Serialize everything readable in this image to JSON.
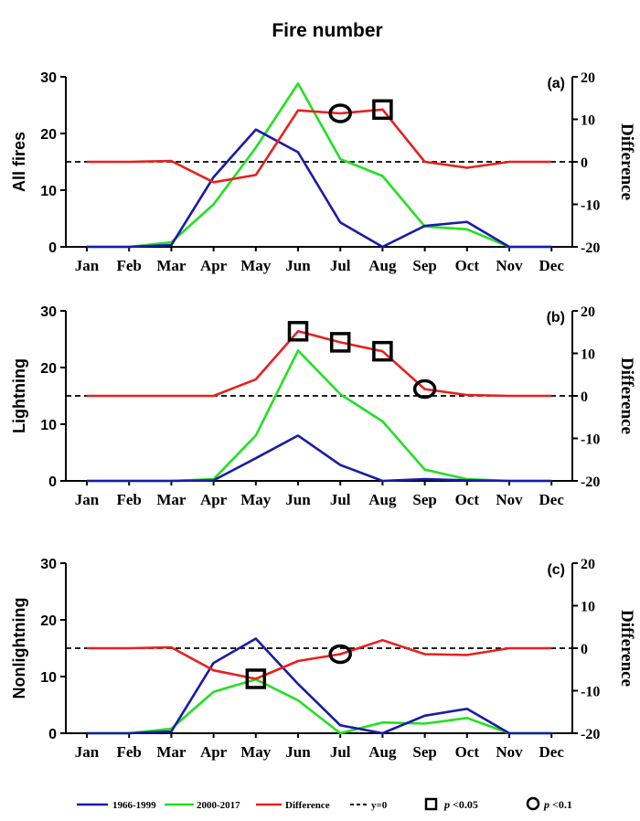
{
  "figure_title": "Fire number",
  "legend": {
    "series_a": "1966-1999",
    "series_b": "2000-2017",
    "series_diff": "Difference",
    "zero_line": "y=0",
    "p05_prefix": "p",
    "p05_rest": " <0.05",
    "p1_prefix": "p",
    "p1_rest": " <0.1"
  },
  "colors": {
    "s1966": "#1a1aa8",
    "s2000": "#22e022",
    "diff": "#e8201e",
    "zero": "#000000"
  },
  "chart_data": [
    {
      "type": "line",
      "panel_label": "(a)",
      "ylabel": "All fires",
      "y2label": "Difference",
      "categories": [
        "Jan",
        "Feb",
        "Mar",
        "Apr",
        "May",
        "Jun",
        "Jul",
        "Aug",
        "Sep",
        "Oct",
        "Nov",
        "Dec"
      ],
      "ylim": [
        0,
        30
      ],
      "yticks": [
        0,
        10,
        20,
        30
      ],
      "y2lim": [
        -20,
        20
      ],
      "y2ticks": [
        -20,
        -10,
        0,
        10,
        20
      ],
      "series": [
        {
          "name": "1966-1999",
          "axis": "left",
          "values": [
            0,
            0,
            0.3,
            12.3,
            20.7,
            16.7,
            4.3,
            0,
            3.7,
            4.4,
            0,
            0
          ]
        },
        {
          "name": "2000-2017",
          "axis": "left",
          "values": [
            0,
            0,
            0.8,
            7.5,
            17.5,
            28.8,
            15.5,
            12.5,
            3.6,
            3.1,
            0,
            0
          ]
        },
        {
          "name": "Difference",
          "axis": "right",
          "values": [
            0,
            0,
            0.2,
            -4.8,
            -3.1,
            12.1,
            11.4,
            12.3,
            0,
            -1.4,
            0,
            0
          ]
        }
      ],
      "markers": [
        {
          "category": "Jul",
          "value": 11.4,
          "marker": "circle"
        },
        {
          "category": "Aug",
          "value": 12.3,
          "marker": "square"
        }
      ]
    },
    {
      "type": "line",
      "panel_label": "(b)",
      "ylabel": "Lightning",
      "y2label": "Difference",
      "categories": [
        "Jan",
        "Feb",
        "Mar",
        "Apr",
        "May",
        "Jun",
        "Jul",
        "Aug",
        "Sep",
        "Oct",
        "Nov",
        "Dec"
      ],
      "ylim": [
        0,
        30
      ],
      "yticks": [
        0,
        10,
        20,
        30
      ],
      "y2lim": [
        -20,
        20
      ],
      "y2ticks": [
        -20,
        -10,
        0,
        10,
        20
      ],
      "series": [
        {
          "name": "1966-1999",
          "axis": "left",
          "values": [
            0,
            0,
            0,
            0.1,
            4.0,
            8.0,
            2.8,
            0,
            0.3,
            0.1,
            0,
            0
          ]
        },
        {
          "name": "2000-2017",
          "axis": "left",
          "values": [
            0,
            0,
            0,
            0.3,
            8.0,
            23.0,
            15.3,
            10.5,
            2.0,
            0.3,
            0,
            0
          ]
        },
        {
          "name": "Difference",
          "axis": "right",
          "values": [
            0,
            0,
            0,
            0,
            3.9,
            15.2,
            12.6,
            10.5,
            1.6,
            0.2,
            0,
            0
          ]
        }
      ],
      "markers": [
        {
          "category": "Jun",
          "value": 15.2,
          "marker": "square"
        },
        {
          "category": "Jul",
          "value": 12.6,
          "marker": "square"
        },
        {
          "category": "Aug",
          "value": 10.5,
          "marker": "square"
        },
        {
          "category": "Sep",
          "value": 1.6,
          "marker": "circle"
        }
      ]
    },
    {
      "type": "line",
      "panel_label": "(c)",
      "ylabel": "Nonlightning",
      "y2label": "Difference",
      "categories": [
        "Jan",
        "Feb",
        "Mar",
        "Apr",
        "May",
        "Jun",
        "Jul",
        "Aug",
        "Sep",
        "Oct",
        "Nov",
        "Dec"
      ],
      "ylim": [
        0,
        30
      ],
      "yticks": [
        0,
        10,
        20,
        30
      ],
      "y2lim": [
        -20,
        20
      ],
      "y2ticks": [
        -20,
        -10,
        0,
        10,
        20
      ],
      "series": [
        {
          "name": "1966-1999",
          "axis": "left",
          "values": [
            0,
            0,
            0.3,
            12.4,
            16.7,
            8.7,
            1.4,
            0,
            3.1,
            4.3,
            0,
            0
          ]
        },
        {
          "name": "2000-2017",
          "axis": "left",
          "values": [
            0,
            0,
            0.8,
            7.3,
            9.5,
            5.8,
            0,
            1.9,
            1.7,
            2.7,
            0,
            0
          ]
        },
        {
          "name": "Difference",
          "axis": "right",
          "values": [
            0,
            0,
            0.2,
            -5.2,
            -7.2,
            -3.0,
            -1.4,
            1.9,
            -1.4,
            -1.6,
            0,
            0
          ]
        }
      ],
      "markers": [
        {
          "category": "May",
          "value": -7.2,
          "marker": "square"
        },
        {
          "category": "Jul",
          "value": -1.4,
          "marker": "circle"
        }
      ]
    }
  ]
}
